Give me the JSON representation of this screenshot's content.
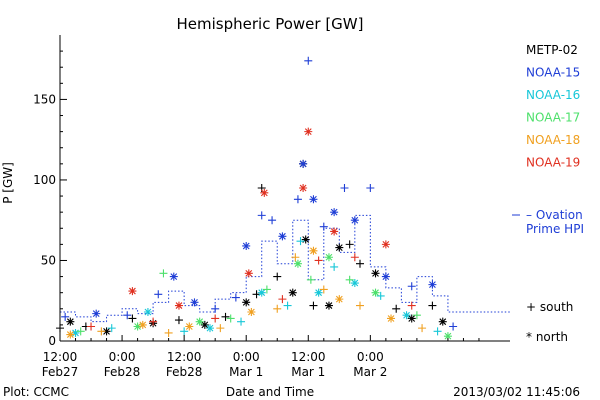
{
  "chart_data": {
    "type": "scatter",
    "title": "Hemispheric Power [GW]",
    "xlabel": "Date and Time",
    "ylabel": "P [GW]",
    "xlim": [
      "2013-02-27 12:00",
      "2013-03-03 03:00"
    ],
    "ylim": [
      0,
      190
    ],
    "x_ticks": [
      {
        "x": "2013-02-27 12:00",
        "time": "12:00",
        "date": "Feb27"
      },
      {
        "x": "2013-02-28 00:00",
        "time": "0:00",
        "date": "Feb28"
      },
      {
        "x": "2013-02-28 12:00",
        "time": "12:00",
        "date": "Feb28"
      },
      {
        "x": "2013-03-01 00:00",
        "time": "0:00",
        "date": "Mar 1"
      },
      {
        "x": "2013-03-01 12:00",
        "time": "12:00",
        "date": "Mar 1"
      },
      {
        "x": "2013-03-02 00:00",
        "time": "0:00",
        "date": "Mar 2"
      }
    ],
    "y_ticks": [
      0,
      50,
      100,
      150
    ],
    "legend": {
      "placement": "right",
      "entries": [
        {
          "name": "METP-02",
          "color": "#000000"
        },
        {
          "name": "NOAA-15",
          "color": "#1f3ed6"
        },
        {
          "name": "NOAA-16",
          "color": "#17c7d8"
        },
        {
          "name": "NOAA-17",
          "color": "#4de06b"
        },
        {
          "name": "NOAA-18",
          "color": "#f0a020"
        },
        {
          "name": "NOAA-19",
          "color": "#e03020"
        }
      ],
      "ovation_label": [
        "– Ovation",
        "Prime HPI"
      ],
      "ovation_color": "#1f3ed6",
      "marker_keys": [
        {
          "symbol": "+",
          "label": "south"
        },
        {
          "symbol": "*",
          "label": "north"
        }
      ]
    },
    "footer_left": "Plot: CCMC",
    "footer_right": "2013/03/02 11:45:06",
    "series": [
      {
        "name": "METP-02",
        "color": "#000000",
        "points": [
          [
            "2013-02-27 12:00",
            8,
            "+"
          ],
          [
            "2013-02-27 14:00",
            12,
            "*"
          ],
          [
            "2013-02-27 17:00",
            9,
            "+"
          ],
          [
            "2013-02-27 21:00",
            6,
            "*"
          ],
          [
            "2013-02-28 02:00",
            14,
            "+"
          ],
          [
            "2013-02-28 06:00",
            11,
            "*"
          ],
          [
            "2013-02-28 11:00",
            13,
            "+"
          ],
          [
            "2013-02-28 16:00",
            10,
            "*"
          ],
          [
            "2013-02-28 20:00",
            15,
            "+"
          ],
          [
            "2013-03-01 00:00",
            24,
            "*"
          ],
          [
            "2013-03-01 02:00",
            29,
            "+"
          ],
          [
            "2013-03-01 03:00",
            95,
            "+"
          ],
          [
            "2013-03-01 06:00",
            40,
            "+"
          ],
          [
            "2013-03-01 09:00",
            30,
            "*"
          ],
          [
            "2013-03-01 11:00",
            110,
            "*"
          ],
          [
            "2013-03-01 11:30",
            63,
            "*"
          ],
          [
            "2013-03-01 13:00",
            22,
            "+"
          ],
          [
            "2013-03-01 16:00",
            22,
            "*"
          ],
          [
            "2013-03-01 18:00",
            58,
            "*"
          ],
          [
            "2013-03-01 20:00",
            60,
            "+"
          ],
          [
            "2013-03-01 22:00",
            48,
            "+"
          ],
          [
            "2013-03-02 01:00",
            42,
            "*"
          ],
          [
            "2013-03-02 05:00",
            20,
            "+"
          ],
          [
            "2013-03-02 08:00",
            14,
            "*"
          ],
          [
            "2013-03-02 12:00",
            22,
            "+"
          ],
          [
            "2013-03-02 14:00",
            12,
            "*"
          ]
        ]
      },
      {
        "name": "NOAA-15",
        "color": "#1f3ed6",
        "points": [
          [
            "2013-02-27 13:00",
            15,
            "+"
          ],
          [
            "2013-02-27 19:00",
            17,
            "*"
          ],
          [
            "2013-02-28 01:00",
            16,
            "+"
          ],
          [
            "2013-02-28 07:00",
            29,
            "+"
          ],
          [
            "2013-02-28 10:00",
            40,
            "*"
          ],
          [
            "2013-02-28 14:00",
            24,
            "*"
          ],
          [
            "2013-02-28 18:00",
            20,
            "+"
          ],
          [
            "2013-02-28 22:00",
            27,
            "+"
          ],
          [
            "2013-03-01 00:00",
            59,
            "*"
          ],
          [
            "2013-03-01 03:00",
            78,
            "+"
          ],
          [
            "2013-03-01 05:00",
            75,
            "+"
          ],
          [
            "2013-03-01 07:00",
            65,
            "*"
          ],
          [
            "2013-03-01 10:00",
            88,
            "+"
          ],
          [
            "2013-03-01 11:00",
            110,
            "*"
          ],
          [
            "2013-03-01 12:00",
            174,
            "+"
          ],
          [
            "2013-03-01 13:00",
            88,
            "*"
          ],
          [
            "2013-03-01 15:00",
            71,
            "+"
          ],
          [
            "2013-03-01 17:00",
            80,
            "*"
          ],
          [
            "2013-03-01 19:00",
            95,
            "+"
          ],
          [
            "2013-03-01 21:00",
            75,
            "*"
          ],
          [
            "2013-03-02 00:00",
            95,
            "+"
          ],
          [
            "2013-03-02 03:00",
            40,
            "*"
          ],
          [
            "2013-03-02 08:00",
            34,
            "+"
          ],
          [
            "2013-03-02 12:00",
            35,
            "*"
          ],
          [
            "2013-03-02 16:00",
            9,
            "+"
          ]
        ]
      },
      {
        "name": "NOAA-16",
        "color": "#17c7d8",
        "points": [
          [
            "2013-02-27 15:00",
            5,
            "*"
          ],
          [
            "2013-02-27 22:00",
            8,
            "+"
          ],
          [
            "2013-02-28 05:00",
            18,
            "*"
          ],
          [
            "2013-02-28 12:00",
            6,
            "+"
          ],
          [
            "2013-02-28 17:00",
            8,
            "*"
          ],
          [
            "2013-02-28 23:00",
            12,
            "+"
          ],
          [
            "2013-03-01 03:00",
            30,
            "*"
          ],
          [
            "2013-03-01 08:00",
            22,
            "+"
          ],
          [
            "2013-03-01 10:30",
            62,
            "+"
          ],
          [
            "2013-03-01 14:00",
            30,
            "*"
          ],
          [
            "2013-03-01 17:00",
            46,
            "+"
          ],
          [
            "2013-03-01 21:00",
            36,
            "*"
          ],
          [
            "2013-03-02 02:00",
            28,
            "+"
          ],
          [
            "2013-03-02 07:00",
            16,
            "*"
          ],
          [
            "2013-03-02 13:00",
            6,
            "+"
          ]
        ]
      },
      {
        "name": "NOAA-17",
        "color": "#4de06b",
        "points": [
          [
            "2013-02-27 16:00",
            6,
            "+"
          ],
          [
            "2013-02-28 03:00",
            9,
            "*"
          ],
          [
            "2013-02-28 08:00",
            42,
            "+"
          ],
          [
            "2013-02-28 15:00",
            12,
            "*"
          ],
          [
            "2013-02-28 21:00",
            14,
            "+"
          ],
          [
            "2013-03-01 04:00",
            32,
            "+"
          ],
          [
            "2013-03-01 10:00",
            48,
            "*"
          ],
          [
            "2013-03-01 12:30",
            38,
            "+"
          ],
          [
            "2013-03-01 16:00",
            52,
            "*"
          ],
          [
            "2013-03-01 20:00",
            38,
            "+"
          ],
          [
            "2013-03-02 01:00",
            30,
            "*"
          ],
          [
            "2013-03-02 09:00",
            16,
            "+"
          ],
          [
            "2013-03-02 15:00",
            3,
            "*"
          ]
        ]
      },
      {
        "name": "NOAA-18",
        "color": "#f0a020",
        "points": [
          [
            "2013-02-27 14:00",
            4,
            "*"
          ],
          [
            "2013-02-27 20:00",
            6,
            "+"
          ],
          [
            "2013-02-28 04:00",
            10,
            "*"
          ],
          [
            "2013-02-28 09:00",
            5,
            "+"
          ],
          [
            "2013-02-28 13:00",
            9,
            "*"
          ],
          [
            "2013-02-28 19:00",
            8,
            "+"
          ],
          [
            "2013-03-01 01:00",
            18,
            "*"
          ],
          [
            "2013-03-01 06:00",
            20,
            "+"
          ],
          [
            "2013-03-01 09:30",
            52,
            "+"
          ],
          [
            "2013-03-01 13:00",
            56,
            "*"
          ],
          [
            "2013-03-01 15:00",
            32,
            "+"
          ],
          [
            "2013-03-01 18:00",
            26,
            "*"
          ],
          [
            "2013-03-01 22:00",
            22,
            "+"
          ],
          [
            "2013-03-02 04:00",
            14,
            "*"
          ],
          [
            "2013-03-02 10:00",
            8,
            "+"
          ]
        ]
      },
      {
        "name": "NOAA-19",
        "color": "#e03020",
        "points": [
          [
            "2013-02-27 18:00",
            9,
            "+"
          ],
          [
            "2013-02-28 02:00",
            31,
            "*"
          ],
          [
            "2013-02-28 06:00",
            12,
            "+"
          ],
          [
            "2013-02-28 11:00",
            22,
            "*"
          ],
          [
            "2013-02-28 18:00",
            14,
            "+"
          ],
          [
            "2013-03-01 00:30",
            42,
            "*"
          ],
          [
            "2013-03-01 03:30",
            92,
            "*"
          ],
          [
            "2013-03-01 07:00",
            26,
            "+"
          ],
          [
            "2013-03-01 11:00",
            95,
            "*"
          ],
          [
            "2013-03-01 12:00",
            130,
            "*"
          ],
          [
            "2013-03-01 14:00",
            50,
            "+"
          ],
          [
            "2013-03-01 17:00",
            68,
            "*"
          ],
          [
            "2013-03-01 21:00",
            52,
            "+"
          ],
          [
            "2013-03-02 03:00",
            60,
            "*"
          ],
          [
            "2013-03-02 08:00",
            22,
            "+"
          ]
        ]
      }
    ],
    "ovation_prime_hpi": {
      "name": "Ovation Prime HPI",
      "color": "#1f3ed6",
      "points": [
        [
          "2013-02-27 12:00",
          18
        ],
        [
          "2013-02-27 15:00",
          15
        ],
        [
          "2013-02-27 18:00",
          12
        ],
        [
          "2013-02-27 21:00",
          16
        ],
        [
          "2013-02-28 00:00",
          20
        ],
        [
          "2013-02-28 03:00",
          17
        ],
        [
          "2013-02-28 06:00",
          24
        ],
        [
          "2013-02-28 09:00",
          31
        ],
        [
          "2013-02-28 12:00",
          22
        ],
        [
          "2013-02-28 15:00",
          18
        ],
        [
          "2013-02-28 18:00",
          26
        ],
        [
          "2013-02-28 21:00",
          30
        ],
        [
          "2013-03-01 00:00",
          40
        ],
        [
          "2013-03-01 03:00",
          62
        ],
        [
          "2013-03-01 06:00",
          48
        ],
        [
          "2013-03-01 09:00",
          75
        ],
        [
          "2013-03-01 12:00",
          38
        ],
        [
          "2013-03-01 15:00",
          70
        ],
        [
          "2013-03-01 18:00",
          55
        ],
        [
          "2013-03-01 21:00",
          78
        ],
        [
          "2013-03-02 00:00",
          46
        ],
        [
          "2013-03-02 03:00",
          33
        ],
        [
          "2013-03-02 06:00",
          24
        ],
        [
          "2013-03-02 09:00",
          40
        ],
        [
          "2013-03-02 12:00",
          28
        ],
        [
          "2013-03-02 15:00",
          18
        ]
      ]
    }
  }
}
